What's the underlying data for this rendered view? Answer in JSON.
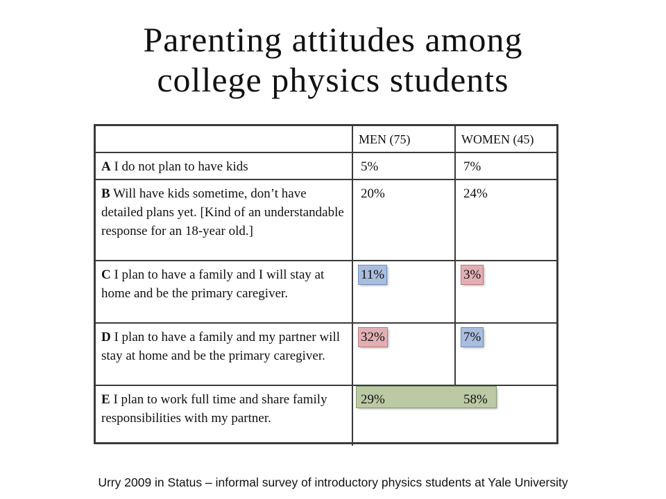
{
  "slide": {
    "title_line1": "Parenting attitudes among",
    "title_line2": "college physics students",
    "caption": "Urry 2009 in Status – informal survey of introductory physics students at Yale University"
  },
  "table": {
    "headers": {
      "option": "",
      "men": "MEN (75)",
      "women": "WOMEN (45)"
    },
    "rows": [
      {
        "letter": "A",
        "text": "I do not plan to have kids",
        "men": "5%",
        "women": "7%",
        "men_highlight": "none",
        "women_highlight": "none"
      },
      {
        "letter": "B",
        "text": "Will have kids sometime, don’t have detailed plans yet. [Kind of an understandable response for an 18-year old.]",
        "men": "20%",
        "women": "24%",
        "men_highlight": "none",
        "women_highlight": "none"
      },
      {
        "letter": "C",
        "text": "I plan to have a family and I will stay at home and be the primary caregiver.",
        "men": "11%",
        "women": "3%",
        "men_highlight": "blue",
        "women_highlight": "red"
      },
      {
        "letter": "D",
        "text": "I plan to have a family and my partner will stay at home and be the primary caregiver.",
        "men": "32%",
        "women": "7%",
        "men_highlight": "red",
        "women_highlight": "blue"
      },
      {
        "letter": "E",
        "text": "I plan to work full time and share family responsibilities with my partner.",
        "men": "29%",
        "women": "58%",
        "men_highlight": "green",
        "women_highlight": "green"
      }
    ]
  },
  "colors": {
    "highlight_blue": "#a9bddd",
    "highlight_red": "#e1afb3",
    "highlight_green": "#b8c7a0",
    "border": "#3a3a3a"
  }
}
